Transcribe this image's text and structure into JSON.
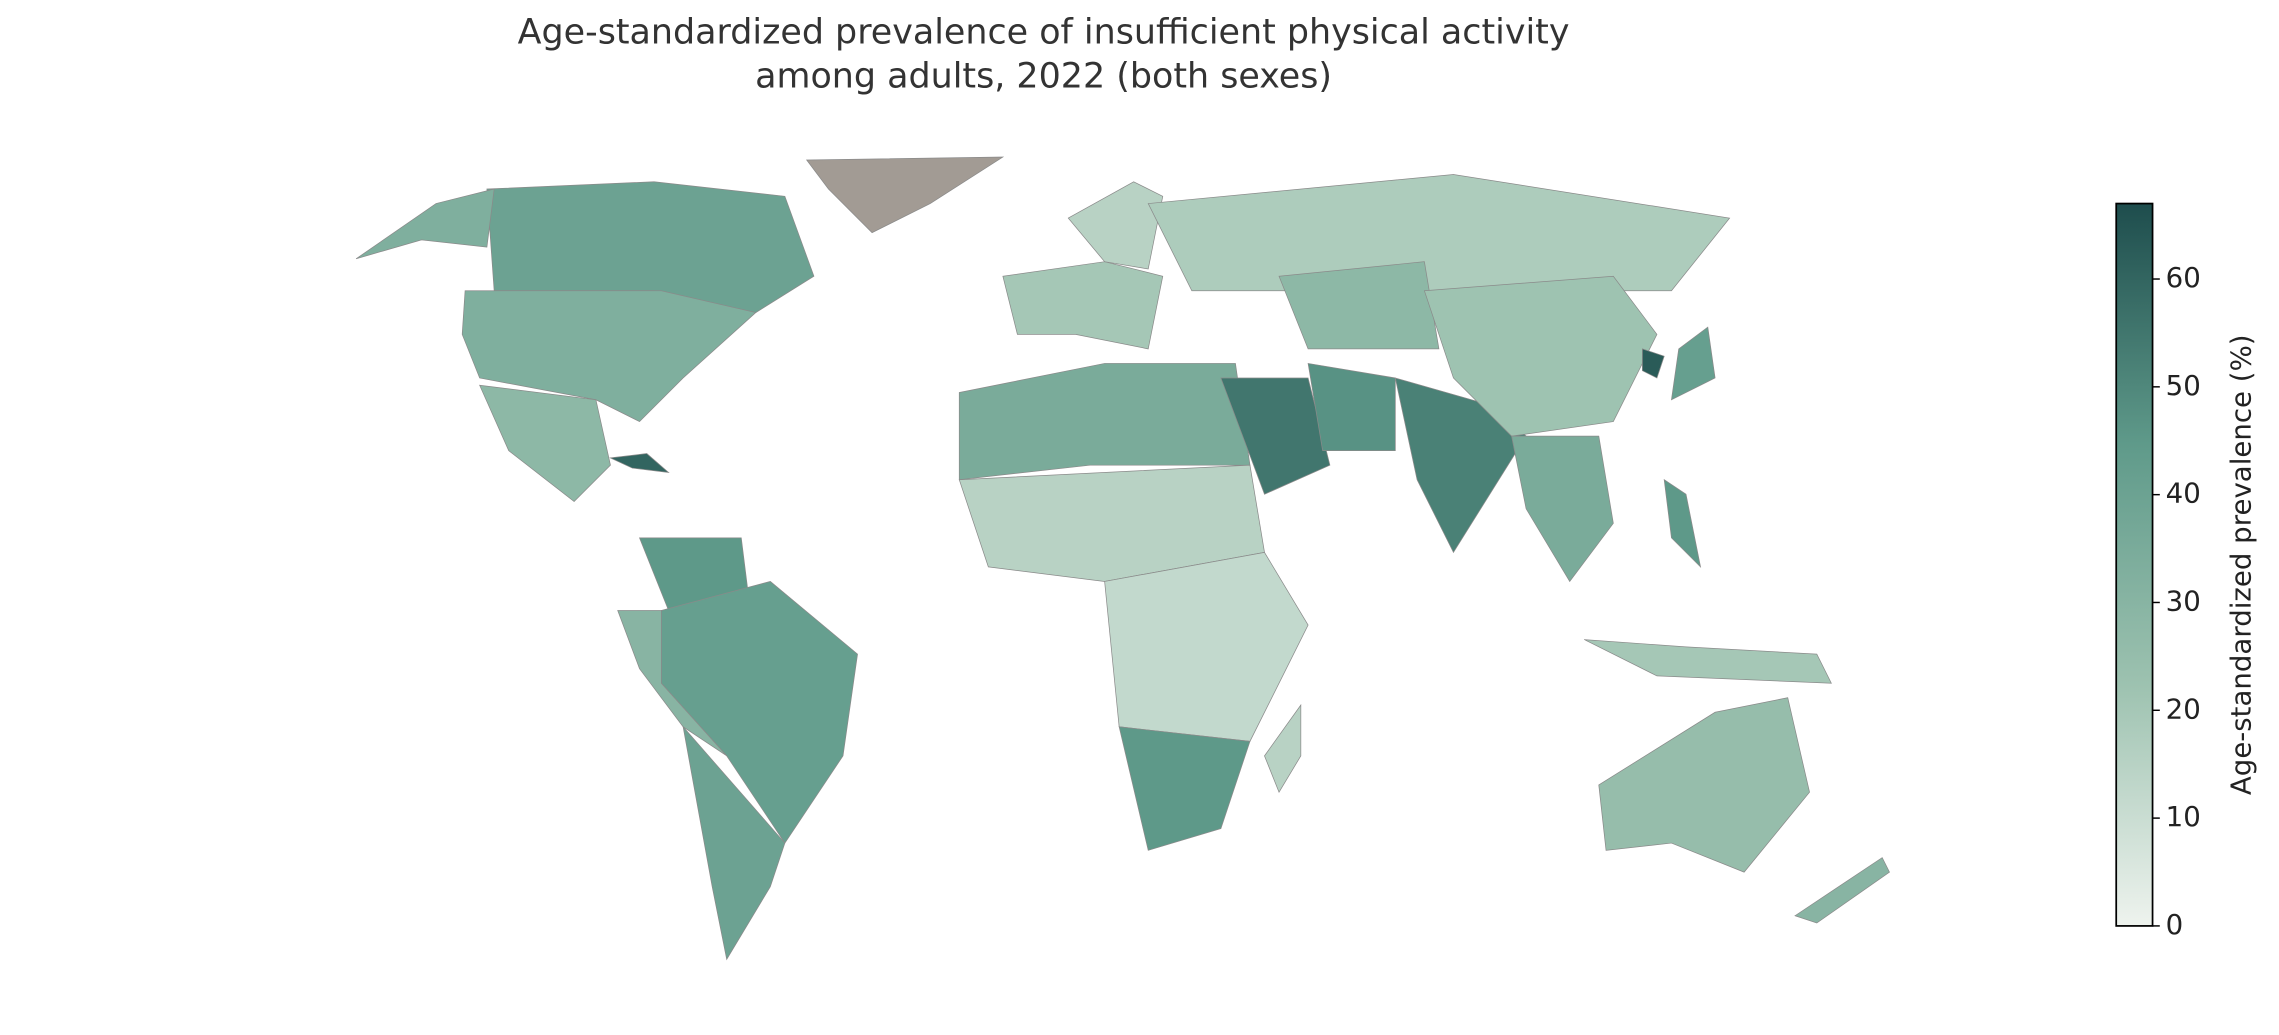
{
  "chart_data": {
    "type": "choropleth",
    "title": [
      "Age-standardized prevalence of insufficient physical activity",
      "among adults, 2022 (both sexes)"
    ],
    "values": [
      40,
      33,
      33,
      null,
      28,
      60,
      45,
      42,
      30,
      40,
      20,
      15,
      18,
      35,
      15,
      12,
      45,
      55,
      47,
      52,
      28,
      22,
      35,
      20,
      42,
      63,
      25,
      30,
      15,
      45
    ],
    "missing_color": "#a29b94",
    "cmap": [
      "#eef3ee",
      "#9dc2b0",
      "#5f9a8a",
      "#1e4d4d"
    ],
    "colorbar": {
      "label": "Age-standardized prevalence (%)",
      "lim": [
        0,
        67
      ],
      "ticks": [
        0,
        10,
        20,
        30,
        40,
        50,
        60
      ]
    }
  }
}
